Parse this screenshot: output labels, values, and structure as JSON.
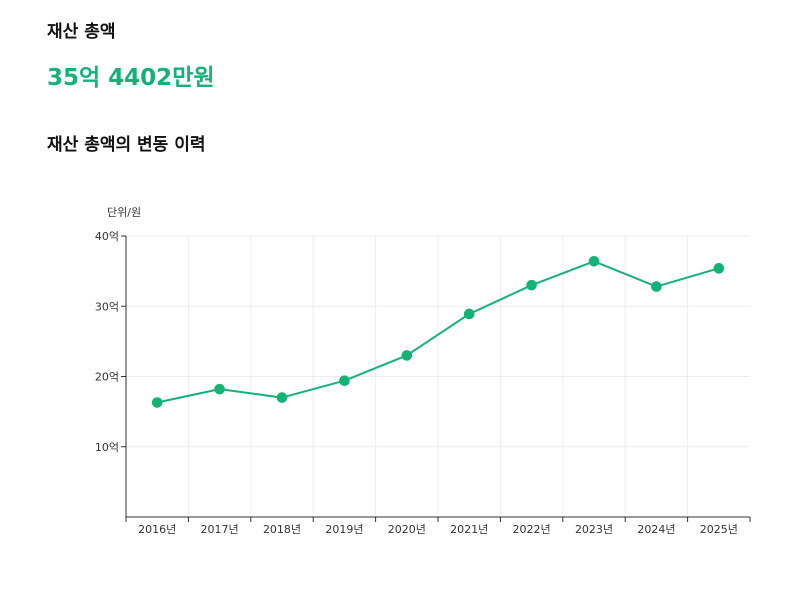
{
  "header": {
    "section_title": "재산 총액",
    "total_amount": "35억 4402만원",
    "history_title": "재산 총액의 변동 이력"
  },
  "colors": {
    "accent": "#14b276",
    "grid": "#ececec",
    "axis": "#333333",
    "text": "#111111"
  },
  "chart_data": {
    "type": "line",
    "unit_label": "단위/원",
    "x": [
      "2016년",
      "2017년",
      "2018년",
      "2019년",
      "2020년",
      "2021년",
      "2022년",
      "2023년",
      "2024년",
      "2025년"
    ],
    "series": [
      {
        "values": [
          16.3,
          18.2,
          17.0,
          19.4,
          23.0,
          28.9,
          33.0,
          36.4,
          32.8,
          35.4
        ]
      }
    ],
    "ylim": [
      0,
      40
    ],
    "yticks": [
      10,
      20,
      30,
      40
    ],
    "ytick_labels": [
      "10억",
      "20억",
      "30억",
      "40억"
    ],
    "grid": true,
    "legend": "none"
  }
}
